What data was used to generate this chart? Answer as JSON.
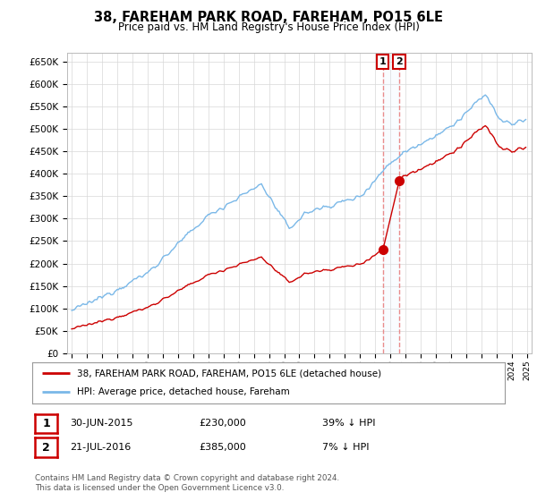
{
  "title": "38, FAREHAM PARK ROAD, FAREHAM, PO15 6LE",
  "subtitle": "Price paid vs. HM Land Registry's House Price Index (HPI)",
  "ylim": [
    0,
    670000
  ],
  "yticks": [
    0,
    50000,
    100000,
    150000,
    200000,
    250000,
    300000,
    350000,
    400000,
    450000,
    500000,
    550000,
    600000,
    650000
  ],
  "ytick_labels": [
    "£0",
    "£50K",
    "£100K",
    "£150K",
    "£200K",
    "£250K",
    "£300K",
    "£350K",
    "£400K",
    "£450K",
    "£500K",
    "£550K",
    "£600K",
    "£650K"
  ],
  "hpi_color": "#7ab8e8",
  "price_color": "#cc0000",
  "marker_color": "#cc0000",
  "dashed_line_color": "#e88080",
  "shade_color": "#ddeeff",
  "transaction1_date": 2015.5,
  "transaction1_price": 230000,
  "transaction2_date": 2016.58,
  "transaction2_price": 385000,
  "legend_label1": "38, FAREHAM PARK ROAD, FAREHAM, PO15 6LE (detached house)",
  "legend_label2": "HPI: Average price, detached house, Fareham",
  "table_row1_num": "1",
  "table_row1_date": "30-JUN-2015",
  "table_row1_price": "£230,000",
  "table_row1_hpi": "39% ↓ HPI",
  "table_row2_num": "2",
  "table_row2_date": "21-JUL-2016",
  "table_row2_price": "£385,000",
  "table_row2_hpi": "7% ↓ HPI",
  "footnote": "Contains HM Land Registry data © Crown copyright and database right 2024.\nThis data is licensed under the Open Government Licence v3.0.",
  "background_color": "#ffffff",
  "plot_bg_color": "#ffffff",
  "grid_color": "#d8d8d8"
}
